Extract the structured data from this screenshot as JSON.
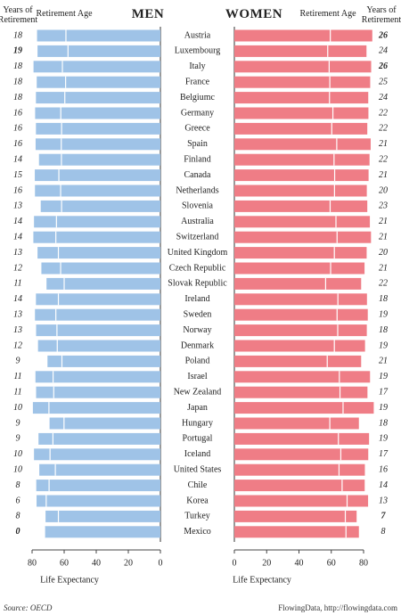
{
  "chart_data": {
    "type": "butterfly",
    "header_years": "Years of Retirement",
    "header_age": "Retirement Age",
    "x_label": "Life Expectancy",
    "source": "Source: OECD",
    "credit": "FlowingData, http://flowingdata.com",
    "xlim": [
      0,
      80
    ],
    "xticks": [
      0,
      20,
      40,
      60,
      80
    ],
    "categories": [
      "Austria",
      "Luxembourg",
      "Italy",
      "France",
      "Belgiumc",
      "Germany",
      "Greece",
      "Spain",
      "Finland",
      "Canada",
      "Netherlands",
      "Slovenia",
      "Australia",
      "Switzerland",
      "United Kingdom",
      "Czech Republic",
      "Slovak Republic",
      "Ireland",
      "Sweden",
      "Norway",
      "Denmark",
      "Poland",
      "Israel",
      "New Zealand",
      "Japan",
      "Hungary",
      "Portugal",
      "Iceland",
      "United States",
      "Chile",
      "Korea",
      "Turkey",
      "Mexico"
    ],
    "series": [
      {
        "name": "MEN",
        "color": "#9fc3e7",
        "retirement_age": [
          58.9,
          57.6,
          61.1,
          59.1,
          59.6,
          62.1,
          61.6,
          61.8,
          61.7,
          63.3,
          62.2,
          61.6,
          64.8,
          65.2,
          63.6,
          62.2,
          60.0,
          63.6,
          65.2,
          64.5,
          64.3,
          61.4,
          66.9,
          66.5,
          69.5,
          60.1,
          67.0,
          68.8,
          65.5,
          69.4,
          71.2,
          63.6,
          72.2
        ],
        "years_of_retirement": [
          18,
          19,
          18,
          18,
          18,
          16,
          16,
          16,
          14,
          15,
          16,
          13,
          14,
          14,
          13,
          12,
          11,
          14,
          13,
          13,
          12,
          9,
          11,
          11,
          10,
          9,
          9,
          10,
          10,
          8,
          6,
          8,
          0
        ]
      },
      {
        "name": "WOMEN",
        "color": "#ef7d86",
        "retirement_age": [
          59.4,
          57.8,
          58.7,
          59.1,
          58.9,
          61.0,
          60.3,
          63.4,
          61.7,
          62.1,
          62.0,
          59.3,
          62.9,
          63.6,
          61.9,
          59.6,
          56.5,
          64.1,
          63.6,
          64.0,
          61.9,
          57.5,
          65.0,
          65.4,
          67.3,
          59.1,
          64.4,
          65.9,
          64.8,
          66.7,
          69.8,
          68.7,
          69.1
        ],
        "years_of_retirement": [
          26,
          24,
          26,
          25,
          24,
          22,
          22,
          21,
          22,
          21,
          20,
          23,
          21,
          21,
          20,
          21,
          22,
          18,
          19,
          18,
          19,
          21,
          19,
          17,
          19,
          18,
          19,
          17,
          16,
          14,
          13,
          7,
          8
        ]
      }
    ]
  }
}
